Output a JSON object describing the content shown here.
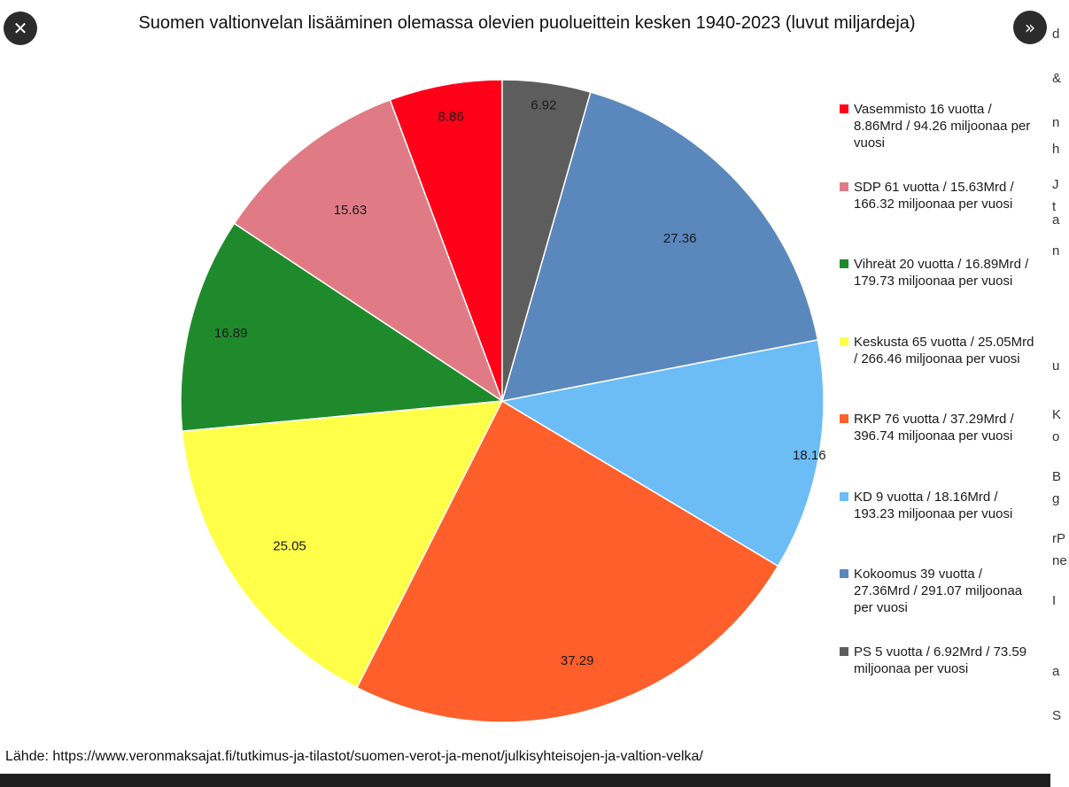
{
  "viewer": {
    "close_glyph": "✕",
    "next_glyph": "»",
    "close_icon": "close-icon",
    "next_icon": "double-chevron-right-icon"
  },
  "backdrop_text": [
    "d",
    "&",
    "n",
    "h",
    "J",
    "t",
    "a",
    "n",
    "u",
    "K",
    "o",
    "B",
    "g",
    "rP",
    "ne",
    "I",
    "a",
    "S"
  ],
  "chart_data": {
    "type": "pie",
    "title": "Suomen valtionvelan lisääminen olemassa olevien puolueittein kesken 1940-2023 (luvut miljardeja)",
    "source": "Lähde: https://www.veronmaksajat.fi/tutkimus-ja-tilastot/suomen-verot-ja-menot/julkisyhteisojen-ja-valtion-velka/",
    "legend_position": "right",
    "slices": [
      {
        "label": "8.86",
        "value": 8.86,
        "color": "#ff0019",
        "legend": "Vasemmisto 16 vuotta / 8.86Mrd / 94.26 miljoonaa per vuosi"
      },
      {
        "label": "15.63",
        "value": 15.63,
        "color": "#e07b86",
        "legend": "SDP 61 vuotta / 15.63Mrd / 166.32 miljoonaa per vuosi"
      },
      {
        "label": "16.89",
        "value": 16.89,
        "color": "#1f8a2c",
        "legend": "Vihreät 20 vuotta / 16.89Mrd / 179.73 miljoonaa per vuosi"
      },
      {
        "label": "25.05",
        "value": 25.05,
        "color": "#ffff4a",
        "legend": "Keskusta 65 vuotta / 25.05Mrd / 266.46 miljoonaa per vuosi"
      },
      {
        "label": "37.29",
        "value": 37.29,
        "color": "#ff5f2a",
        "legend": "RKP 76 vuotta / 37.29Mrd / 396.74 miljoonaa per vuosi"
      },
      {
        "label": "18.16",
        "value": 18.16,
        "color": "#6cbcf6",
        "legend": "KD 9 vuotta / 18.16Mrd / 193.23 miljoonaa per vuosi"
      },
      {
        "label": "27.36",
        "value": 27.36,
        "color": "#5a88bd",
        "legend": "Kokoomus 39 vuotta / 27.36Mrd / 291.07 miljoonaa per vuosi"
      },
      {
        "label": "6.92",
        "value": 6.92,
        "color": "#5d5d5d",
        "legend": "PS 5 vuotta / 6.92Mrd / 73.59 miljoonaa per vuosi"
      }
    ]
  }
}
